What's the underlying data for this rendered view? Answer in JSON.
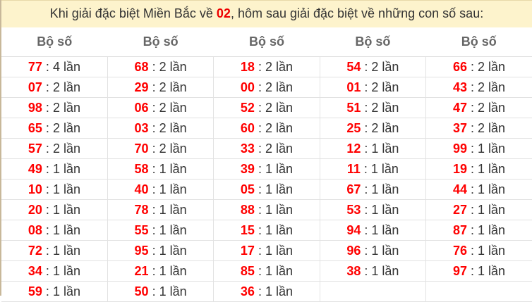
{
  "title": {
    "prefix": "Khi giải đặc biệt Miền Bắc về ",
    "highlight": "02",
    "suffix": ", hôm sau giải đặc biệt về những con số sau:"
  },
  "header_label": "Bộ số",
  "separator": " : ",
  "colors": {
    "number": "#ff0000",
    "title_bg": "#fdf3cc"
  },
  "columns": [
    [
      [
        "77",
        "4 lần"
      ],
      [
        "07",
        "2 lần"
      ],
      [
        "98",
        "2 lần"
      ],
      [
        "65",
        "2 lần"
      ],
      [
        "57",
        "2 lần"
      ],
      [
        "49",
        "1 lần"
      ],
      [
        "10",
        "1 lần"
      ],
      [
        "20",
        "1 lần"
      ],
      [
        "08",
        "1 lần"
      ],
      [
        "72",
        "1 lần"
      ],
      [
        "34",
        "1 lần"
      ],
      [
        "59",
        "1 lần"
      ]
    ],
    [
      [
        "68",
        "2 lần"
      ],
      [
        "29",
        "2 lần"
      ],
      [
        "06",
        "2 lần"
      ],
      [
        "03",
        "2 lần"
      ],
      [
        "70",
        "2 lần"
      ],
      [
        "58",
        "1 lần"
      ],
      [
        "40",
        "1 lần"
      ],
      [
        "78",
        "1 lần"
      ],
      [
        "55",
        "1 lần"
      ],
      [
        "95",
        "1 lần"
      ],
      [
        "21",
        "1 lần"
      ],
      [
        "50",
        "1 lần"
      ]
    ],
    [
      [
        "18",
        "2 lần"
      ],
      [
        "00",
        "2 lần"
      ],
      [
        "52",
        "2 lần"
      ],
      [
        "60",
        "2 lần"
      ],
      [
        "33",
        "2 lần"
      ],
      [
        "39",
        "1 lần"
      ],
      [
        "05",
        "1 lần"
      ],
      [
        "88",
        "1 lần"
      ],
      [
        "15",
        "1 lần"
      ],
      [
        "17",
        "1 lần"
      ],
      [
        "85",
        "1 lần"
      ],
      [
        "36",
        "1 lần"
      ]
    ],
    [
      [
        "54",
        "2 lần"
      ],
      [
        "01",
        "2 lần"
      ],
      [
        "51",
        "2 lần"
      ],
      [
        "25",
        "2 lần"
      ],
      [
        "12",
        "1 lần"
      ],
      [
        "11",
        "1 lần"
      ],
      [
        "67",
        "1 lần"
      ],
      [
        "53",
        "1 lần"
      ],
      [
        "94",
        "1 lần"
      ],
      [
        "96",
        "1 lần"
      ],
      [
        "38",
        "1 lần"
      ]
    ],
    [
      [
        "66",
        "2 lần"
      ],
      [
        "43",
        "2 lần"
      ],
      [
        "47",
        "2 lần"
      ],
      [
        "37",
        "2 lần"
      ],
      [
        "99",
        "1 lần"
      ],
      [
        "19",
        "1 lần"
      ],
      [
        "44",
        "1 lần"
      ],
      [
        "27",
        "1 lần"
      ],
      [
        "87",
        "1 lần"
      ],
      [
        "76",
        "1 lần"
      ],
      [
        "97",
        "1 lần"
      ]
    ]
  ]
}
